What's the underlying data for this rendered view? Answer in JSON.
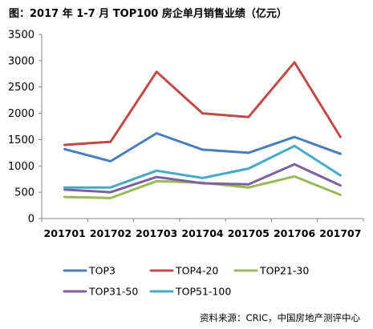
{
  "chart_data": {
    "type": "line",
    "title": "图：2017 年 1-7 月 TOP100 房企单月销售业绩（亿元）",
    "xlabel": "",
    "ylabel": "",
    "categories": [
      "201701",
      "201702",
      "201703",
      "201704",
      "201705",
      "201706",
      "201707"
    ],
    "ylim": [
      0,
      3500
    ],
    "yticks": [
      0,
      500,
      1000,
      1500,
      2000,
      2500,
      3000,
      3500
    ],
    "grid": false,
    "legend": "bottom",
    "series": [
      {
        "name": "TOP3",
        "color": "#4A7EBB",
        "values": [
          1320,
          1090,
          1620,
          1310,
          1250,
          1550,
          1230
        ]
      },
      {
        "name": "TOP4-20",
        "color": "#BE4B48",
        "values": [
          1400,
          1460,
          2790,
          2000,
          1930,
          2970,
          1550
        ]
      },
      {
        "name": "TOP21-30",
        "color": "#98B954",
        "values": [
          410,
          390,
          710,
          680,
          590,
          800,
          450
        ]
      },
      {
        "name": "TOP31-50",
        "color": "#7D60A0",
        "values": [
          550,
          500,
          790,
          670,
          650,
          1030,
          630
        ]
      },
      {
        "name": "TOP51-100",
        "color": "#46AAC5",
        "values": [
          590,
          590,
          910,
          770,
          950,
          1380,
          820
        ]
      }
    ],
    "source": "资料来源：CRIC，中国房地产测评中心"
  }
}
